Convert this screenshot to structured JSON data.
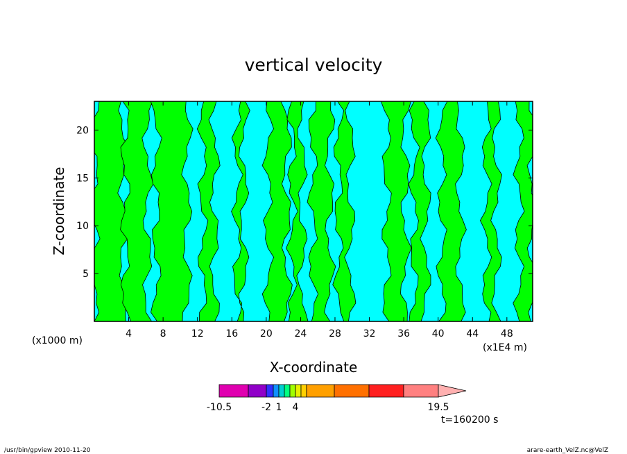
{
  "chart_data": {
    "type": "heatmap",
    "title": "vertical velocity",
    "xlabel": "X-coordinate",
    "ylabel": "Z-coordinate",
    "x_unit_left": "(x1000 m)",
    "x_unit_right": "(x1E4 m)",
    "x_ticks": [
      "4",
      "8",
      "12",
      "16",
      "20",
      "24",
      "28",
      "32",
      "36",
      "40",
      "44",
      "48"
    ],
    "x_tick_values": [
      4,
      8,
      12,
      16,
      20,
      24,
      28,
      32,
      36,
      40,
      44,
      48
    ],
    "y_ticks": [
      "5",
      "10",
      "15",
      "20"
    ],
    "y_tick_values": [
      5,
      10,
      15,
      20
    ],
    "xlim": [
      0,
      51
    ],
    "ylim": [
      0,
      23
    ],
    "background_color": "#00ffff",
    "positive_color": "#00ff00",
    "green_bands": [
      [
        0,
        3.4
      ],
      [
        3.6,
        6.2
      ],
      [
        7.2,
        10.8
      ],
      [
        12.6,
        14.0
      ],
      [
        16.6,
        17.4
      ],
      [
        20.2,
        22.4
      ],
      [
        23.0,
        24.2
      ],
      [
        25.4,
        27.4
      ],
      [
        28.4,
        29.8
      ],
      [
        34.0,
        36.2
      ],
      [
        37.2,
        38.6
      ],
      [
        40.4,
        42.6
      ],
      [
        45.6,
        46.8
      ],
      [
        49.4,
        51.0
      ]
    ],
    "colorbar": {
      "colors": [
        "#e000b0",
        "#9000c8",
        "#3030ff",
        "#1090ff",
        "#00d0d0",
        "#00ff80",
        "#a0ff00",
        "#e8f000",
        "#ffd000",
        "#ffa000",
        "#ff7000",
        "#ff2020",
        "#ff8080",
        "#ffb0b0"
      ],
      "labels": [
        "-10.5",
        "-2",
        "1",
        "4",
        "19.5"
      ],
      "label_values": [
        -10.5,
        -2,
        1,
        4,
        19.5
      ]
    },
    "time_label": "t=160200 s"
  },
  "footer": {
    "left": "/usr/bin/gpview   2010-11-20",
    "right": "arare-earth_VelZ.nc@VelZ"
  }
}
